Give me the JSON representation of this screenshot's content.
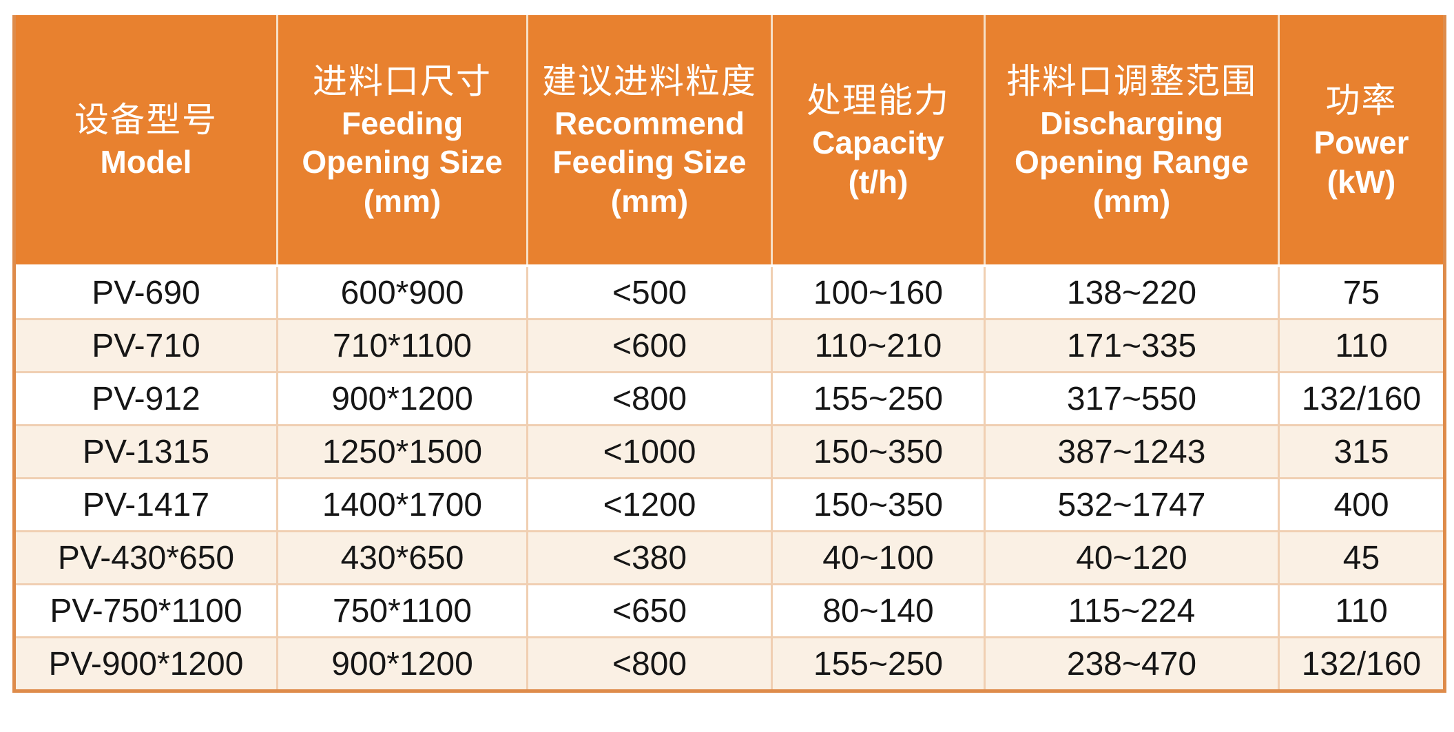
{
  "table": {
    "columns": [
      {
        "zh": "设备型号",
        "en": [
          "Model"
        ]
      },
      {
        "zh": "进料口尺寸",
        "en": [
          "Feeding",
          "Opening Size",
          "(mm)"
        ]
      },
      {
        "zh": "建议进料粒度",
        "en": [
          "Recommend",
          "Feeding Size",
          "(mm)"
        ]
      },
      {
        "zh": "处理能力",
        "en": [
          "Capacity",
          "(t/h)"
        ]
      },
      {
        "zh": "排料口调整范围",
        "en": [
          "Discharging",
          "Opening Range",
          "(mm)"
        ]
      },
      {
        "zh": "功率",
        "en": [
          "Power",
          "(kW)"
        ]
      }
    ],
    "rows": [
      [
        "PV-690",
        "600*900",
        "<500",
        "100~160",
        "138~220",
        "75"
      ],
      [
        "PV-710",
        "710*1100",
        "<600",
        "110~210",
        "171~335",
        "110"
      ],
      [
        "PV-912",
        "900*1200",
        "<800",
        "155~250",
        "317~550",
        "132/160"
      ],
      [
        "PV-1315",
        "1250*1500",
        "<1000",
        "150~350",
        "387~1243",
        "315"
      ],
      [
        "PV-1417",
        "1400*1700",
        "<1200",
        "150~350",
        "532~1747",
        "400"
      ],
      [
        "PV-430*650",
        "430*650",
        "<380",
        "40~100",
        "40~120",
        "45"
      ],
      [
        "PV-750*1100",
        "750*1100",
        "<650",
        "80~140",
        "115~224",
        "110"
      ],
      [
        "PV-900*1200",
        "900*1200",
        "<800",
        "155~250",
        "238~470",
        "132/160"
      ]
    ]
  },
  "colors": {
    "header_bg": "#E8812F",
    "header_text": "#FFFFFF",
    "header_divider": "#F6DFC6",
    "row_bg": "#FFFFFF",
    "row_alt_bg": "#FAF0E4",
    "grid_border": "#F0CFB2",
    "outer_border": "#DE8B4A",
    "body_text": "#161616"
  }
}
